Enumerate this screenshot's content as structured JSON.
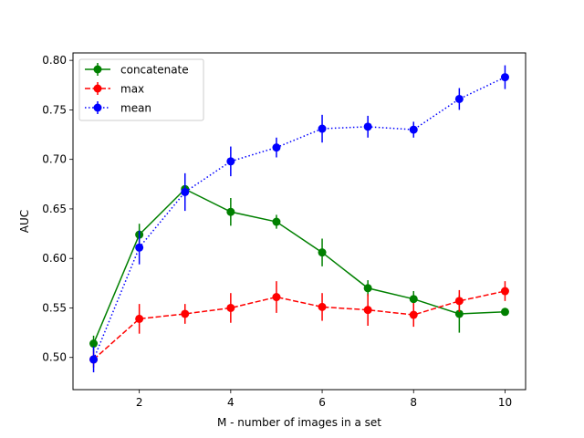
{
  "chart_data": {
    "type": "line",
    "title": "",
    "xlabel": "M - number of images in a set",
    "ylabel": "AUC",
    "xlim": [
      0.55,
      10.45
    ],
    "ylim": [
      0.4675,
      0.8075
    ],
    "xticks": [
      2,
      4,
      6,
      8,
      10
    ],
    "xtick_labels": [
      "2",
      "4",
      "6",
      "8",
      "10"
    ],
    "yticks": [
      0.5,
      0.55,
      0.6,
      0.65,
      0.7,
      0.75,
      0.8
    ],
    "ytick_labels": [
      "0.50",
      "0.55",
      "0.60",
      "0.65",
      "0.70",
      "0.75",
      "0.80"
    ],
    "grid": false,
    "legend_position": "top-left",
    "x": [
      1,
      2,
      3,
      4,
      5,
      6,
      7,
      8,
      9,
      10
    ],
    "series": [
      {
        "name": "concatenate",
        "color": "#008000",
        "linestyle": "solid",
        "values": [
          0.514,
          0.624,
          0.67,
          0.647,
          0.637,
          0.606,
          0.57,
          0.559,
          0.544,
          0.546
        ],
        "errors": [
          0.008,
          0.011,
          0.008,
          0.014,
          0.007,
          0.014,
          0.008,
          0.008,
          0.019,
          0.003
        ]
      },
      {
        "name": "max",
        "color": "#ff0000",
        "linestyle": "dashed",
        "values": [
          0.498,
          0.539,
          0.544,
          0.55,
          0.561,
          0.551,
          0.548,
          0.543,
          0.557,
          0.567
        ],
        "errors": [
          0.008,
          0.015,
          0.01,
          0.015,
          0.016,
          0.014,
          0.016,
          0.012,
          0.011,
          0.01
        ]
      },
      {
        "name": "mean",
        "color": "#0000ff",
        "linestyle": "dotted",
        "values": [
          0.498,
          0.611,
          0.667,
          0.698,
          0.712,
          0.731,
          0.733,
          0.73,
          0.761,
          0.783
        ],
        "errors": [
          0.013,
          0.017,
          0.019,
          0.015,
          0.01,
          0.014,
          0.011,
          0.008,
          0.011,
          0.012
        ]
      }
    ]
  }
}
